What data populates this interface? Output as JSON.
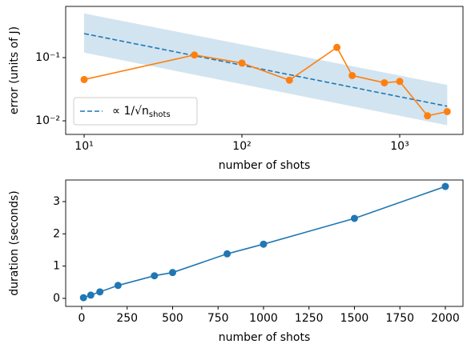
{
  "chart_data": [
    {
      "type": "line",
      "xscale": "log",
      "yscale": "log",
      "xlabel": "number of shots",
      "ylabel": "error (units of J)",
      "xlim": [
        7.64,
        2518
      ],
      "ylim": [
        0.0061,
        0.646
      ],
      "xticks": [
        {
          "value": 10,
          "label": "10¹"
        },
        {
          "value": 100,
          "label": "10²"
        },
        {
          "value": 1000,
          "label": "10³"
        }
      ],
      "yticks": [
        {
          "value": 0.01,
          "label": "10⁻²"
        },
        {
          "value": 0.1,
          "label": "10⁻¹"
        }
      ],
      "legend": "lower left",
      "band": {
        "color": "#1f77b4",
        "x": [
          10,
          2000
        ],
        "lower": [
          0.12,
          0.0085
        ],
        "upper": [
          0.5,
          0.037
        ]
      },
      "series": [
        {
          "name": "∝ 1/√n",
          "name_sub": "shots",
          "color": "#1f77b4",
          "style": "dashed",
          "x": [
            10,
            2000
          ],
          "values": [
            0.24,
            0.017
          ]
        },
        {
          "color": "#ff7f0e",
          "marker": "o",
          "style": "solid",
          "x": [
            10,
            50,
            100,
            200,
            400,
            500,
            800,
            1000,
            1500,
            2000
          ],
          "values": [
            0.045,
            0.11,
            0.082,
            0.044,
            0.145,
            0.052,
            0.04,
            0.042,
            0.012,
            0.014
          ]
        }
      ]
    },
    {
      "type": "line",
      "xscale": "linear",
      "yscale": "linear",
      "xlabel": "number of shots",
      "ylabel": "duration (seconds)",
      "xlim": [
        -88,
        2097
      ],
      "ylim": [
        -0.25,
        3.67
      ],
      "xticks": [
        0,
        250,
        500,
        750,
        1000,
        1250,
        1500,
        1750,
        2000
      ],
      "yticks": [
        0,
        1,
        2,
        3
      ],
      "series": [
        {
          "color": "#1f77b4",
          "marker": "o",
          "style": "solid",
          "x": [
            10,
            50,
            100,
            200,
            400,
            500,
            800,
            1000,
            1500,
            2000
          ],
          "values": [
            0.02,
            0.1,
            0.2,
            0.4,
            0.7,
            0.8,
            1.38,
            1.68,
            2.48,
            3.47
          ]
        }
      ]
    }
  ]
}
